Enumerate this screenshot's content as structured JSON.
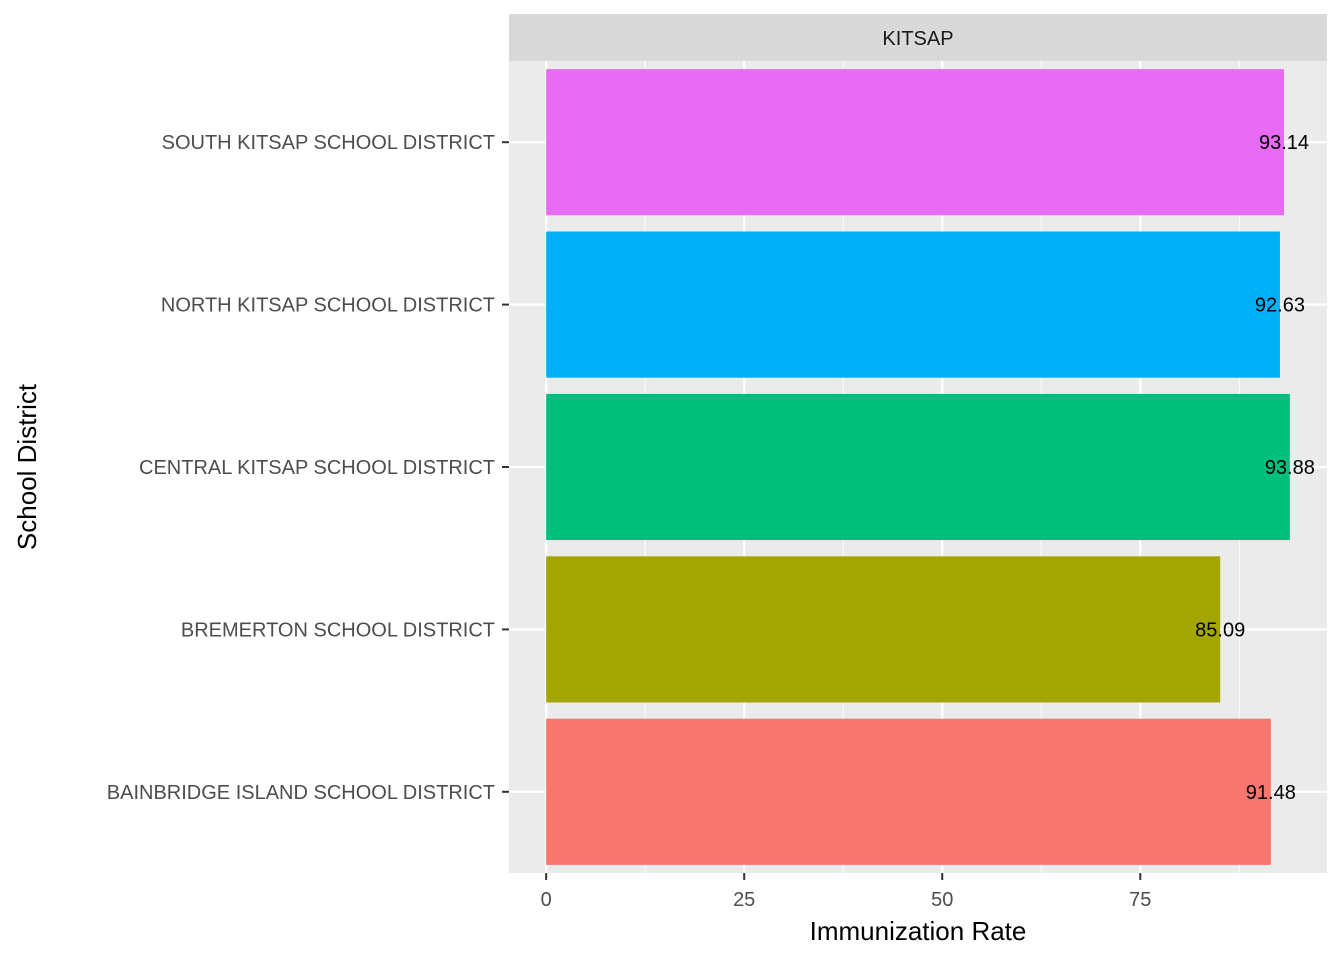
{
  "chart_data": {
    "type": "bar",
    "orientation": "horizontal",
    "facet": "KITSAP",
    "categories": [
      "BAINBRIDGE ISLAND SCHOOL DISTRICT",
      "BREMERTON SCHOOL DISTRICT",
      "CENTRAL KITSAP SCHOOL DISTRICT",
      "NORTH KITSAP SCHOOL DISTRICT",
      "SOUTH KITSAP SCHOOL DISTRICT"
    ],
    "values": [
      91.48,
      85.09,
      93.88,
      92.63,
      93.14
    ],
    "data_labels": [
      "91.48",
      "85.09",
      "93.88",
      "92.63",
      "93.14"
    ],
    "colors": [
      "#F8766D",
      "#A3A500",
      "#00BF7D",
      "#00B0F6",
      "#E76BF3"
    ],
    "xlabel": "Immunization Rate",
    "ylabel": "School District",
    "xlim": [
      -4.69,
      98.57
    ],
    "xticks": [
      0,
      25,
      50,
      75
    ],
    "xtick_labels": [
      "0",
      "25",
      "50",
      "75"
    ],
    "grid": true,
    "legend": "none",
    "panel_background": "#EBEBEB",
    "strip_background": "#D9D9D9"
  }
}
